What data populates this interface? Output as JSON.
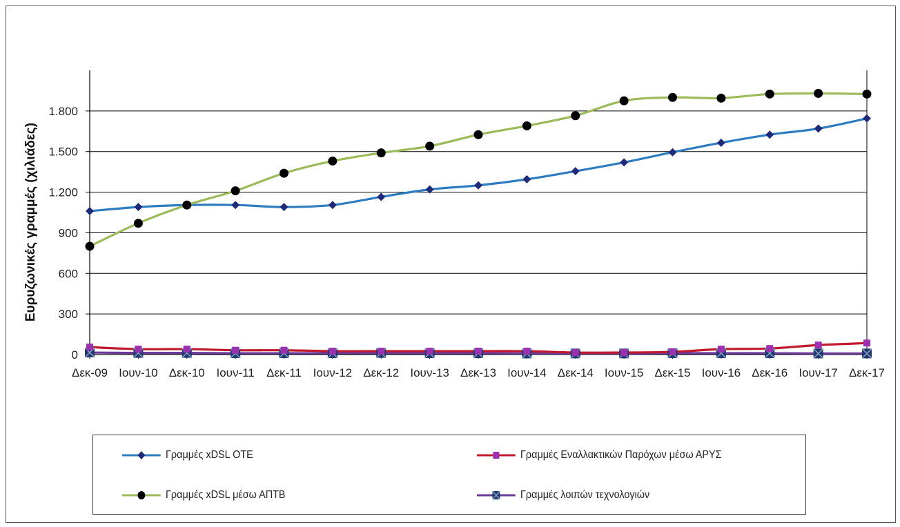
{
  "chart_data": {
    "type": "line",
    "ylabel": "Ευρυζωνικές γραμμές (χιλιάδες)",
    "xlabel": "",
    "ylim": [
      0,
      2100
    ],
    "yticks": [
      0,
      300,
      600,
      900,
      1200,
      1500,
      1800
    ],
    "ytick_labels": [
      "0",
      "300",
      "600",
      "900",
      "1.200",
      "1.500",
      "1.800"
    ],
    "grid": true,
    "legend_position": "bottom",
    "categories": [
      "Δεκ-09",
      "Ιουν-10",
      "Δεκ-10",
      "Ιουν-11",
      "Δεκ-11",
      "Ιουν-12",
      "Δεκ-12",
      "Ιουν-13",
      "Δεκ-13",
      "Ιουν-14",
      "Δεκ-14",
      "Ιουν-15",
      "Δεκ-15",
      "Ιουν-16",
      "Δεκ-16",
      "Ιουν-17",
      "Δεκ-17"
    ],
    "series": [
      {
        "name": "Γραμμές xDSL ΟΤΕ",
        "color": "#2e7cc0",
        "marker": "diamond",
        "marker_color": "#1f2a7a",
        "values": [
          1060,
          1090,
          1105,
          1105,
          1090,
          1105,
          1165,
          1220,
          1250,
          1295,
          1355,
          1420,
          1495,
          1565,
          1625,
          1670,
          1745
        ]
      },
      {
        "name": "Γραμμές Εναλλακτικών Παρόχων μέσω ΑΡΥΣ",
        "color": "#c0182c",
        "marker": "square",
        "marker_color": "#9b30b0",
        "values": [
          55,
          40,
          40,
          32,
          32,
          25,
          25,
          25,
          25,
          25,
          15,
          15,
          20,
          40,
          45,
          70,
          85
        ]
      },
      {
        "name": "Γραμμές xDSL μέσω ΑΠΤΒ",
        "color": "#9bbb59",
        "marker": "circle",
        "marker_color": "#000000",
        "values": [
          800,
          970,
          1105,
          1210,
          1340,
          1430,
          1490,
          1540,
          1625,
          1690,
          1765,
          1875,
          1900,
          1895,
          1925,
          1930,
          1925
        ]
      },
      {
        "name": "Γραμμές λοιπών τεχνολογιών",
        "color": "#6a3a9a",
        "marker": "square-x",
        "marker_color": "#1f3a6e",
        "values": [
          15,
          12,
          12,
          10,
          10,
          10,
          12,
          10,
          10,
          8,
          8,
          8,
          10,
          10,
          10,
          8,
          8
        ]
      }
    ]
  }
}
